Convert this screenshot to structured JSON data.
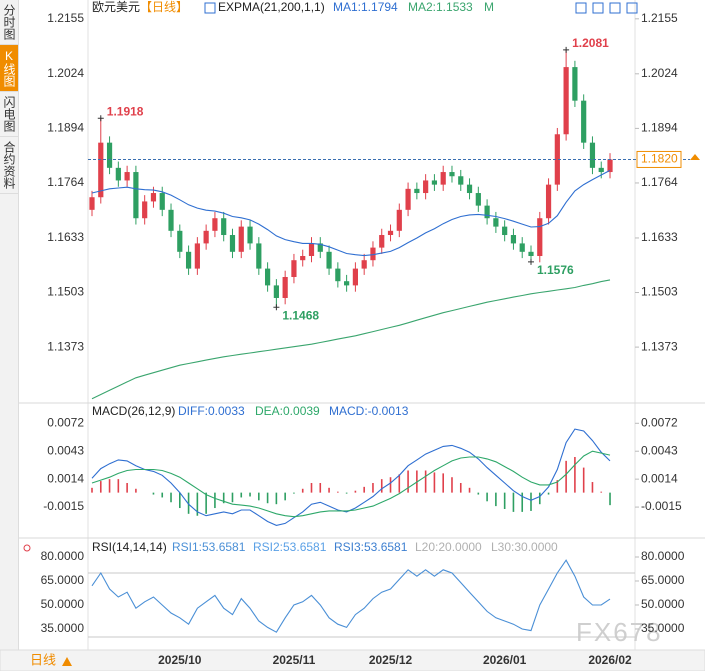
{
  "sidebar": [
    "分时图",
    "K线图",
    "闪电图",
    "合约资料"
  ],
  "footer": {
    "period": "日线",
    "watermark": "FX678"
  },
  "chart_data": [
    {
      "type": "candlestick",
      "title": "欧元美元",
      "period": "【日线】",
      "indicator": "EXPMA(21,200,1,1)",
      "mode": "M",
      "up_color": "#e0404b",
      "down_color": "#2e9f62",
      "candles": {
        "open": [
          1.17,
          1.173,
          1.186,
          1.18,
          1.177,
          1.179,
          1.168,
          1.172,
          1.174,
          1.17,
          1.165,
          1.16,
          1.156,
          1.162,
          1.165,
          1.168,
          1.164,
          1.16,
          1.166,
          1.162,
          1.156,
          1.152,
          1.149,
          1.154,
          1.158,
          1.159,
          1.162,
          1.16,
          1.156,
          1.153,
          1.152,
          1.156,
          1.158,
          1.161,
          1.164,
          1.165,
          1.17,
          1.175,
          1.174,
          1.177,
          1.176,
          1.179,
          1.178,
          1.176,
          1.174,
          1.171,
          1.168,
          1.166,
          1.164,
          1.162,
          1.16,
          1.159,
          1.168,
          1.176,
          1.188,
          1.204,
          1.196,
          1.186,
          1.18,
          1.179
        ],
        "high": [
          1.1745,
          1.1918,
          1.1875,
          1.1815,
          1.1805,
          1.1805,
          1.1735,
          1.1755,
          1.1755,
          1.1715,
          1.1665,
          1.1615,
          1.1635,
          1.1665,
          1.1695,
          1.1695,
          1.1655,
          1.1675,
          1.1675,
          1.1635,
          1.1575,
          1.1535,
          1.1555,
          1.1595,
          1.1605,
          1.1635,
          1.1635,
          1.1615,
          1.1575,
          1.1545,
          1.1575,
          1.1595,
          1.1625,
          1.1655,
          1.1665,
          1.1715,
          1.1765,
          1.1765,
          1.1785,
          1.1785,
          1.1805,
          1.1805,
          1.1795,
          1.1775,
          1.1755,
          1.1725,
          1.1695,
          1.1675,
          1.1655,
          1.1635,
          1.1615,
          1.1695,
          1.1775,
          1.1895,
          1.2081,
          1.2055,
          1.1975,
          1.1875,
          1.1815,
          1.1835
        ],
        "low": [
          1.1685,
          1.1715,
          1.1785,
          1.1755,
          1.1755,
          1.1665,
          1.1665,
          1.1705,
          1.1685,
          1.1635,
          1.1585,
          1.1545,
          1.1545,
          1.1605,
          1.1635,
          1.1625,
          1.1585,
          1.1585,
          1.1605,
          1.1545,
          1.1505,
          1.1468,
          1.1475,
          1.1525,
          1.1565,
          1.1575,
          1.1585,
          1.1545,
          1.1515,
          1.1505,
          1.1505,
          1.1545,
          1.1565,
          1.1595,
          1.1625,
          1.1635,
          1.1685,
          1.1725,
          1.1725,
          1.1745,
          1.1745,
          1.1765,
          1.1745,
          1.1725,
          1.1695,
          1.1665,
          1.1645,
          1.1625,
          1.1605,
          1.1585,
          1.1576,
          1.1575,
          1.1665,
          1.1745,
          1.1865,
          1.1945,
          1.1845,
          1.1785,
          1.1775,
          1.1775
        ],
        "close": [
          1.173,
          1.186,
          1.18,
          1.177,
          1.179,
          1.168,
          1.172,
          1.174,
          1.17,
          1.165,
          1.16,
          1.156,
          1.162,
          1.165,
          1.168,
          1.164,
          1.16,
          1.166,
          1.162,
          1.156,
          1.152,
          1.149,
          1.154,
          1.158,
          1.159,
          1.162,
          1.16,
          1.156,
          1.153,
          1.152,
          1.156,
          1.158,
          1.161,
          1.164,
          1.165,
          1.17,
          1.175,
          1.174,
          1.177,
          1.176,
          1.179,
          1.178,
          1.176,
          1.174,
          1.171,
          1.168,
          1.166,
          1.164,
          1.162,
          1.16,
          1.159,
          1.168,
          1.176,
          1.188,
          1.204,
          1.196,
          1.186,
          1.18,
          1.179,
          1.182
        ]
      },
      "series": [
        {
          "name": "MA1:1.1794",
          "color": "#2f6fd1",
          "values": [
            1.174,
            1.1745,
            1.175,
            1.1752,
            1.1754,
            1.175,
            1.1748,
            1.1747,
            1.1743,
            1.1735,
            1.1724,
            1.1712,
            1.1704,
            1.1699,
            1.1697,
            1.1692,
            1.1684,
            1.1681,
            1.1676,
            1.1666,
            1.1653,
            1.1638,
            1.1629,
            1.1624,
            1.162,
            1.162,
            1.1618,
            1.1612,
            1.1604,
            1.1596,
            1.1593,
            1.1591,
            1.1593,
            1.1597,
            1.1601,
            1.161,
            1.1622,
            1.1633,
            1.1645,
            1.1655,
            1.1667,
            1.1677,
            1.1684,
            1.1688,
            1.1689,
            1.1687,
            1.1684,
            1.1679,
            1.1673,
            1.1666,
            1.1659,
            1.166,
            1.1668,
            1.1686,
            1.1718,
            1.1745,
            1.176,
            1.1772,
            1.1783,
            1.1794
          ]
        },
        {
          "name": "MA2:1.1533",
          "color": "#3aa56e",
          "values": [
            1.125,
            1.126,
            1.127,
            1.128,
            1.129,
            1.13,
            1.1306,
            1.1312,
            1.1318,
            1.1324,
            1.133,
            1.1334,
            1.1338,
            1.1342,
            1.1346,
            1.135,
            1.1353,
            1.1356,
            1.1359,
            1.1362,
            1.1365,
            1.1368,
            1.1371,
            1.1374,
            1.1377,
            1.138,
            1.1384,
            1.1388,
            1.1392,
            1.1396,
            1.14,
            1.1405,
            1.141,
            1.1415,
            1.142,
            1.1425,
            1.1431,
            1.1437,
            1.1443,
            1.1449,
            1.1455,
            1.146,
            1.1465,
            1.147,
            1.1475,
            1.148,
            1.1484,
            1.1488,
            1.1492,
            1.1496,
            1.15,
            1.1503,
            1.1506,
            1.1509,
            1.1512,
            1.1515,
            1.152,
            1.1524,
            1.1529,
            1.1533
          ]
        }
      ],
      "annotations": [
        {
          "value": 1.1918,
          "color": "#e0404b"
        },
        {
          "value": 1.2081,
          "color": "#e0404b"
        },
        {
          "value": 1.1468,
          "color": "#2e9f62"
        },
        {
          "value": 1.1576,
          "color": "#2e9f62"
        }
      ],
      "last_price": {
        "value": 1.182,
        "label": "1.1820"
      },
      "ylim": [
        1.1247,
        1.2176
      ],
      "yticks": [
        1.2155,
        1.2024,
        1.1894,
        1.1764,
        1.1633,
        1.1503,
        1.1373
      ],
      "xticks": [
        {
          "value": 10,
          "label": "2025/10"
        },
        {
          "value": 23,
          "label": "2025/11"
        },
        {
          "value": 34,
          "label": "2025/12"
        },
        {
          "value": 47,
          "label": "2026/01"
        },
        {
          "value": 59,
          "label": "2026/02"
        }
      ]
    },
    {
      "type": "macd",
      "title": "MACD(26,12,9)",
      "series": [
        {
          "name": "DIFF:0.0033",
          "color": "#2f6fd1",
          "values": [
            0.0015,
            0.0025,
            0.003,
            0.0034,
            0.0033,
            0.0028,
            0.0024,
            0.0022,
            0.0018,
            0.001,
            0.0,
            -0.0012,
            -0.002,
            -0.0024,
            -0.0022,
            -0.002,
            -0.0022,
            -0.0018,
            -0.0018,
            -0.0024,
            -0.003,
            -0.0034,
            -0.0032,
            -0.0026,
            -0.002,
            -0.0012,
            -0.001,
            -0.0014,
            -0.0018,
            -0.002,
            -0.0016,
            -0.001,
            -0.0004,
            0.0004,
            0.001,
            0.0018,
            0.0028,
            0.0034,
            0.004,
            0.0044,
            0.0048,
            0.0049,
            0.0046,
            0.0042,
            0.0035,
            0.0026,
            0.0018,
            0.001,
            0.0002,
            -0.0004,
            -0.0008,
            -0.0004,
            0.0006,
            0.0024,
            0.0052,
            0.0066,
            0.0064,
            0.0054,
            0.0042,
            0.0033
          ]
        },
        {
          "name": "DEA:0.0039",
          "color": "#2ea86a",
          "values": [
            0.001,
            0.0013,
            0.0016,
            0.002,
            0.0023,
            0.0024,
            0.0024,
            0.0024,
            0.0023,
            0.002,
            0.0016,
            0.001,
            0.0004,
            -0.0002,
            -0.0006,
            -0.0009,
            -0.0012,
            -0.0013,
            -0.0014,
            -0.0016,
            -0.0019,
            -0.0022,
            -0.0024,
            -0.0025,
            -0.0024,
            -0.0022,
            -0.002,
            -0.0019,
            -0.0019,
            -0.0019,
            -0.0018,
            -0.0016,
            -0.0014,
            -0.001,
            -0.0006,
            -0.0001,
            0.0005,
            0.0011,
            0.0017,
            0.0023,
            0.0028,
            0.0033,
            0.0036,
            0.0037,
            0.0037,
            0.0035,
            0.0032,
            0.0027,
            0.0022,
            0.0016,
            0.0011,
            0.0008,
            0.0008,
            0.0011,
            0.0019,
            0.0029,
            0.0038,
            0.0043,
            0.0041,
            0.0039
          ]
        }
      ],
      "histogram": {
        "name": "MACD:-0.0013",
        "color": "#2f6fd1",
        "up_color": "#e0404b",
        "down_color": "#2e9f62",
        "values": [
          0.0005,
          0.0012,
          0.0014,
          0.0014,
          0.001,
          0.0004,
          0.0,
          -0.0002,
          -0.0005,
          -0.001,
          -0.0016,
          -0.0022,
          -0.0024,
          -0.0022,
          -0.0016,
          -0.0011,
          -0.001,
          -0.0005,
          -0.0004,
          -0.0008,
          -0.0011,
          -0.0012,
          -0.0008,
          -0.0001,
          0.0004,
          0.001,
          0.001,
          0.0005,
          0.0001,
          -0.0001,
          0.0002,
          0.0006,
          0.001,
          0.0014,
          0.0016,
          0.0019,
          0.0023,
          0.0023,
          0.0023,
          0.0021,
          0.002,
          0.0016,
          0.001,
          0.0005,
          -0.0002,
          -0.0009,
          -0.0014,
          -0.0017,
          -0.002,
          -0.002,
          -0.0019,
          -0.0012,
          -0.0002,
          0.0013,
          0.0033,
          0.0037,
          0.0026,
          0.0011,
          0.0001,
          -0.0013
        ]
      },
      "ylim": [
        -0.0044,
        0.0091
      ],
      "yticks": [
        0.0072,
        0.0043,
        0.0014,
        -0.0015
      ]
    },
    {
      "type": "rsi",
      "title": "RSI(14,14,14)",
      "series": [
        {
          "name": "RSI1:53.6581",
          "color": "#4a8fd6",
          "values": [
            62,
            70,
            60,
            55,
            58,
            48,
            52,
            55,
            50,
            45,
            42,
            38,
            48,
            52,
            56,
            48,
            44,
            54,
            48,
            40,
            36,
            33,
            42,
            50,
            52,
            56,
            50,
            42,
            38,
            36,
            44,
            48,
            54,
            58,
            60,
            66,
            72,
            68,
            72,
            68,
            72,
            70,
            64,
            58,
            52,
            46,
            42,
            40,
            38,
            35,
            34,
            50,
            60,
            70,
            78,
            68,
            55,
            50,
            50,
            53.6581
          ]
        }
      ],
      "legend_extra": [
        {
          "name": "RSI2:53.6581",
          "color": "#5aa0e6"
        },
        {
          "name": "RSI3:53.6581",
          "color": "#3d7fd0"
        },
        {
          "name": "L20:20.0000",
          "color": "#b0b0b0"
        },
        {
          "name": "L30:30.0000",
          "color": "#b0b0b0"
        }
      ],
      "level_lines": [
        70,
        30
      ],
      "ylim": [
        23.1,
        87.5
      ],
      "yticks": [
        {
          "value": 80,
          "label": "80.0000"
        },
        {
          "value": 65,
          "label": "65.0000"
        },
        {
          "value": 50,
          "label": "50.0000"
        },
        {
          "value": 35,
          "label": "35.0000"
        }
      ]
    }
  ]
}
